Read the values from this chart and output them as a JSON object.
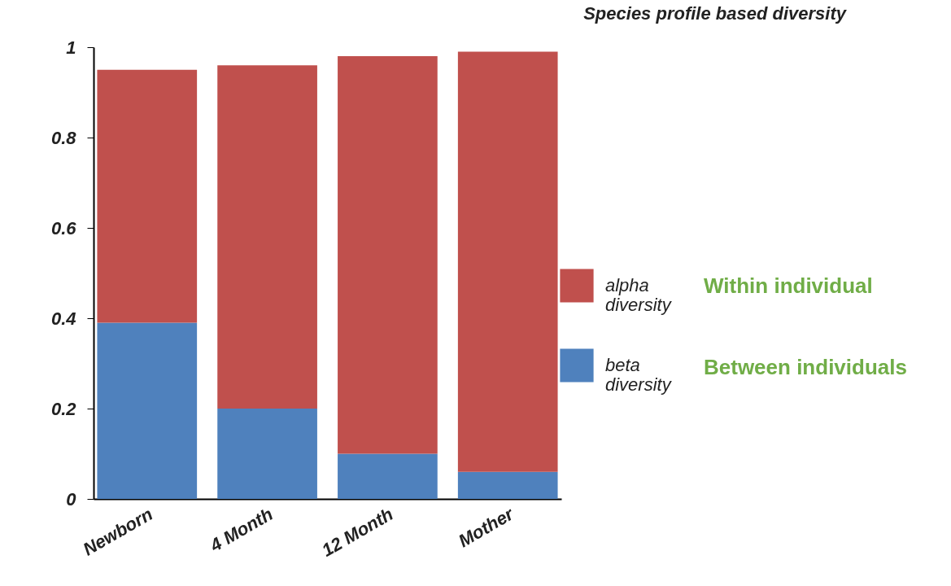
{
  "chart_data": {
    "type": "bar",
    "title": "Species profile based diversity",
    "categories": [
      "Newborn",
      "4 Month",
      "12 Month",
      "Mother"
    ],
    "stacked": true,
    "series": [
      {
        "name": "beta diversity",
        "color": "#4f81bd",
        "values": [
          0.39,
          0.2,
          0.1,
          0.06
        ]
      },
      {
        "name": "alpha diversity",
        "color": "#c0504d",
        "values": [
          0.56,
          0.76,
          0.88,
          0.93
        ]
      }
    ],
    "ylim": [
      0,
      1
    ],
    "yticks": [
      0,
      0.2,
      0.4,
      0.6,
      0.8,
      1
    ],
    "grid": false,
    "legend": "right",
    "annotations": [
      "Within individual",
      "Between individuals"
    ]
  }
}
